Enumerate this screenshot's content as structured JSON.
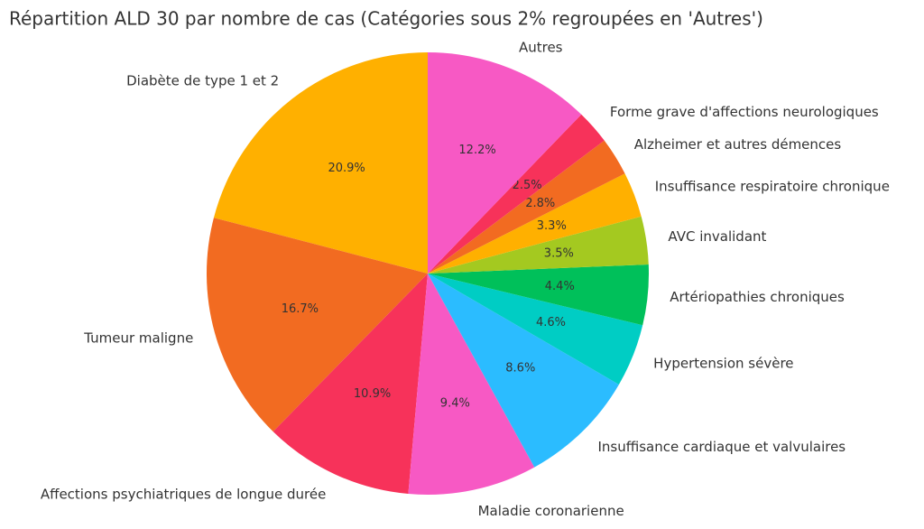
{
  "chart_data": {
    "type": "pie",
    "title": "Répartition ALD 30 par nombre de cas (Catégories sous 2% regroupées en 'Autres')",
    "categories": [
      "Diabète de type 1 et 2",
      "Tumeur maligne",
      "Affections psychiatriques de longue durée",
      "Maladie coronarienne",
      "Insuffisance cardiaque et valvulaires",
      "Hypertension sévère",
      "Artériopathies chroniques",
      "AVC invalidant",
      "Insuffisance respiratoire chronique",
      "Alzheimer et autres démences",
      "Forme grave d'affections neurologiques",
      "Autres"
    ],
    "values": [
      20.9,
      16.7,
      10.9,
      9.4,
      8.6,
      4.6,
      4.4,
      3.5,
      3.3,
      2.8,
      2.5,
      12.2
    ],
    "value_labels": [
      "20.9%",
      "16.7%",
      "10.9%",
      "9.4%",
      "8.6%",
      "4.6%",
      "4.4%",
      "3.5%",
      "3.3%",
      "2.8%",
      "2.5%",
      "12.2%"
    ],
    "colors": [
      "#ffb000",
      "#f26b21",
      "#f7325a",
      "#f759c4",
      "#2bbcff",
      "#00cdc4",
      "#00c05a",
      "#a4c920",
      "#ffb000",
      "#f26b21",
      "#f7325a",
      "#f759c4"
    ]
  }
}
